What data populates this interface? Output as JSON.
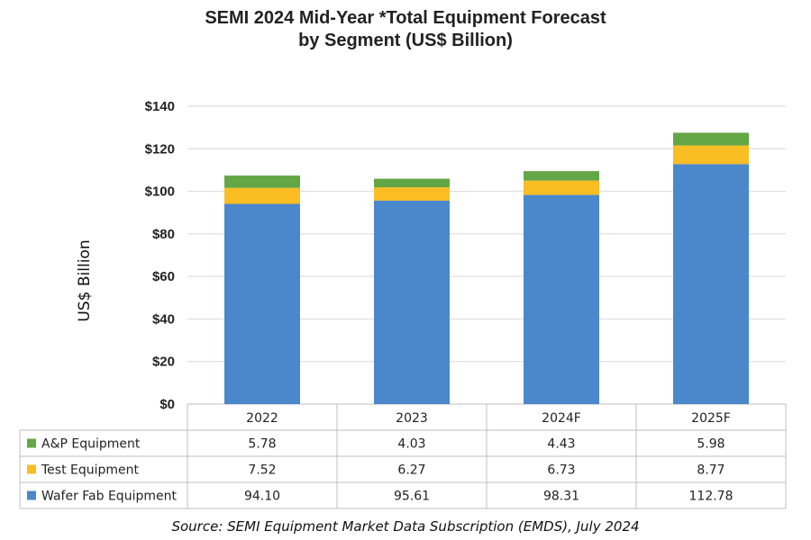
{
  "title_line1": "SEMI 2024 Mid-Year *Total Equipment Forecast",
  "title_line2": "by Segment (US$ Billion)",
  "source": "Source: SEMI Equipment Market Data Subscription (EMDS), July 2024",
  "colors": {
    "wafer_fab": "#4a88cb",
    "test": "#fbbd24",
    "ap": "#63a645",
    "grid": "#d9d9d9",
    "table_border": "#bfbfbf"
  },
  "chart_data": {
    "type": "bar",
    "stacked": true,
    "categories": [
      "2022",
      "2023",
      "2024F",
      "2025F"
    ],
    "series": [
      {
        "name": "Wafer Fab Equipment",
        "values": [
          94.1,
          95.61,
          98.31,
          112.78
        ],
        "color": "#4a88cb",
        "labels": [
          "94.10",
          "95.61",
          "98.31",
          "112.78"
        ]
      },
      {
        "name": "Test Equipment",
        "values": [
          7.52,
          6.27,
          6.73,
          8.77
        ],
        "color": "#fbbd24",
        "labels": [
          "7.52",
          "6.27",
          "6.73",
          "8.77"
        ]
      },
      {
        "name": "A&P Equipment",
        "values": [
          5.78,
          4.03,
          4.43,
          5.98
        ],
        "color": "#63a645",
        "labels": [
          "5.78",
          "4.03",
          "4.43",
          "5.98"
        ]
      }
    ],
    "table_row_order": [
      "A&P Equipment",
      "Test Equipment",
      "Wafer Fab Equipment"
    ],
    "ylabel": "US$ Billion",
    "ylim": [
      0,
      140
    ],
    "yticks": [
      0,
      20,
      40,
      60,
      80,
      100,
      120,
      140
    ],
    "ytick_labels": [
      "$0",
      "$20",
      "$40",
      "$60",
      "$80",
      "$100",
      "$120",
      "$140"
    ],
    "grid": true,
    "legend": "data-table"
  }
}
